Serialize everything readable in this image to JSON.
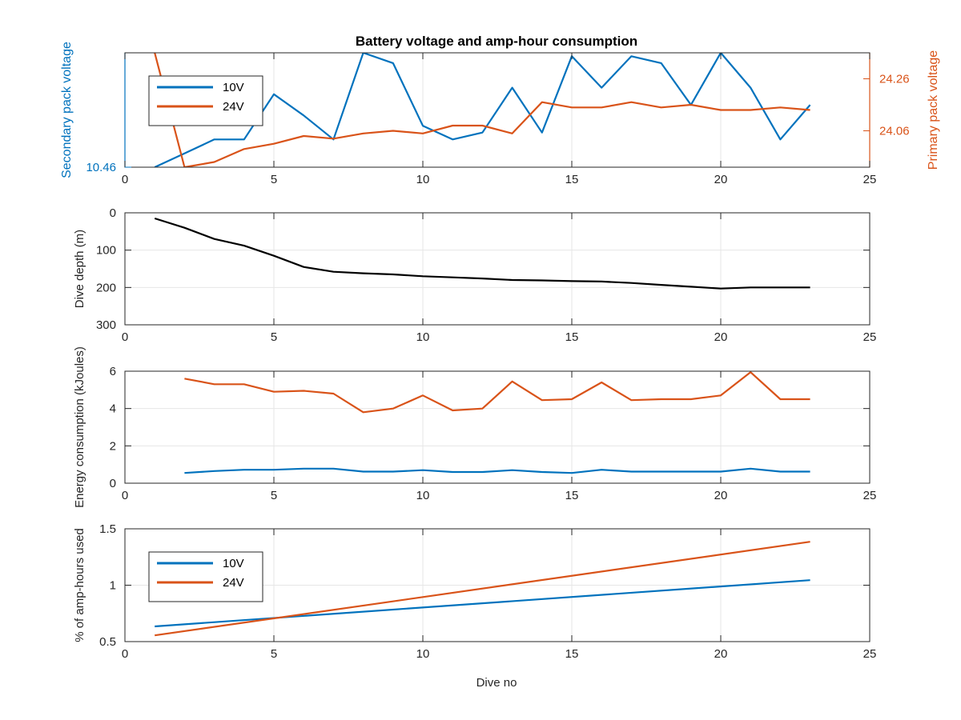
{
  "figure": {
    "title": "Battery voltage and amp-hour consumption",
    "xlabel": "Dive no"
  },
  "colors": {
    "blue": "#0072BD",
    "orange": "#D95319",
    "black": "#000000",
    "grid": "#e6e6e6",
    "axis": "#262626"
  },
  "chart_data": [
    {
      "type": "line",
      "title": "Battery voltage and amp-hour consumption",
      "xlim": [
        0,
        25
      ],
      "xticks": [
        0,
        5,
        10,
        15,
        20,
        25
      ],
      "ylabel_left": "Secondary pack voltage",
      "ylabel_right": "Primary pack voltage",
      "left_ylim": [
        10.46,
        10.5
      ],
      "left_yticks": [
        10.46
      ],
      "left_ytick_labels": [
        "10.46"
      ],
      "right_ylim": [
        23.92,
        24.36
      ],
      "right_yticks": [
        24.06,
        24.26
      ],
      "right_ytick_labels": [
        "24.06",
        "24.26"
      ],
      "legend": "top-left",
      "grid": true,
      "series": [
        {
          "name": "10V",
          "axis": "left",
          "color": "#0072BD",
          "x": [
            1,
            2,
            3,
            4,
            5,
            6,
            7,
            8,
            9,
            10,
            11,
            12,
            13,
            14,
            15,
            16,
            17,
            18,
            19,
            20,
            21,
            22,
            23
          ],
          "y": [
            10.46,
            10.4648,
            10.4697,
            10.4697,
            10.4855,
            10.4781,
            10.4697,
            10.5,
            10.4964,
            10.4745,
            10.4697,
            10.4721,
            10.4878,
            10.4721,
            10.4988,
            10.4878,
            10.4988,
            10.4964,
            10.4818,
            10.5,
            10.4878,
            10.4697,
            10.4818
          ]
        },
        {
          "name": "24V",
          "axis": "right",
          "color": "#D95319",
          "x": [
            1,
            2,
            3,
            4,
            5,
            6,
            7,
            8,
            9,
            10,
            11,
            12,
            13,
            14,
            15,
            16,
            17,
            18,
            19,
            20,
            21,
            22,
            23
          ],
          "y": [
            24.36,
            23.92,
            23.94,
            23.99,
            24.01,
            24.04,
            24.03,
            24.05,
            24.06,
            24.05,
            24.08,
            24.08,
            24.05,
            24.17,
            24.15,
            24.15,
            24.17,
            24.15,
            24.16,
            24.14,
            24.14,
            24.15,
            24.14
          ]
        }
      ]
    },
    {
      "type": "line",
      "ylabel": "Dive depth (m)",
      "xlim": [
        0,
        25
      ],
      "xticks": [
        0,
        5,
        10,
        15,
        20,
        25
      ],
      "ylim": [
        0,
        300
      ],
      "yticks": [
        0,
        100,
        200,
        300
      ],
      "y_reversed": true,
      "grid": true,
      "series": [
        {
          "color": "#000000",
          "x": [
            1,
            2,
            3,
            4,
            5,
            6,
            7,
            8,
            9,
            10,
            11,
            12,
            13,
            14,
            15,
            16,
            17,
            18,
            19,
            20,
            21,
            22,
            23
          ],
          "y": [
            15,
            40,
            70,
            88,
            115,
            145,
            158,
            162,
            165,
            170,
            173,
            176,
            180,
            181,
            183,
            184,
            188,
            193,
            198,
            203,
            200,
            200,
            200
          ]
        }
      ]
    },
    {
      "type": "line",
      "ylabel": "Energy consumption (kJoules)",
      "xlim": [
        0,
        25
      ],
      "xticks": [
        0,
        5,
        10,
        15,
        20,
        25
      ],
      "ylim": [
        0,
        6
      ],
      "yticks": [
        0,
        2,
        4,
        6
      ],
      "grid": true,
      "series": [
        {
          "color": "#D95319",
          "x": [
            2,
            3,
            4,
            5,
            6,
            7,
            8,
            9,
            10,
            11,
            12,
            13,
            14,
            15,
            16,
            17,
            18,
            19,
            20,
            21,
            22,
            23
          ],
          "y": [
            5.6,
            5.3,
            5.3,
            4.9,
            4.95,
            4.8,
            3.8,
            4.0,
            4.7,
            3.9,
            4.0,
            5.45,
            4.45,
            4.5,
            5.4,
            4.45,
            4.5,
            4.5,
            4.7,
            5.95,
            4.5,
            4.5
          ]
        },
        {
          "color": "#0072BD",
          "x": [
            2,
            3,
            4,
            5,
            6,
            7,
            8,
            9,
            10,
            11,
            12,
            13,
            14,
            15,
            16,
            17,
            18,
            19,
            20,
            21,
            22,
            23
          ],
          "y": [
            0.55,
            0.65,
            0.72,
            0.72,
            0.78,
            0.78,
            0.62,
            0.62,
            0.7,
            0.6,
            0.6,
            0.7,
            0.6,
            0.55,
            0.72,
            0.62,
            0.62,
            0.62,
            0.62,
            0.78,
            0.62,
            0.62
          ]
        }
      ]
    },
    {
      "type": "line",
      "ylabel": "% of amp-hours used",
      "xlabel": "Dive no",
      "xlim": [
        0,
        25
      ],
      "xticks": [
        0,
        5,
        10,
        15,
        20,
        25
      ],
      "ylim": [
        0.5,
        1.5
      ],
      "yticks": [
        0.5,
        1,
        1.5
      ],
      "legend": "top-left",
      "grid": true,
      "series": [
        {
          "name": "10V",
          "color": "#0072BD",
          "x": [
            1,
            23
          ],
          "y": [
            0.635,
            1.045
          ]
        },
        {
          "name": "24V",
          "color": "#D95319",
          "x": [
            1,
            23
          ],
          "y": [
            0.555,
            1.385
          ]
        }
      ]
    }
  ]
}
